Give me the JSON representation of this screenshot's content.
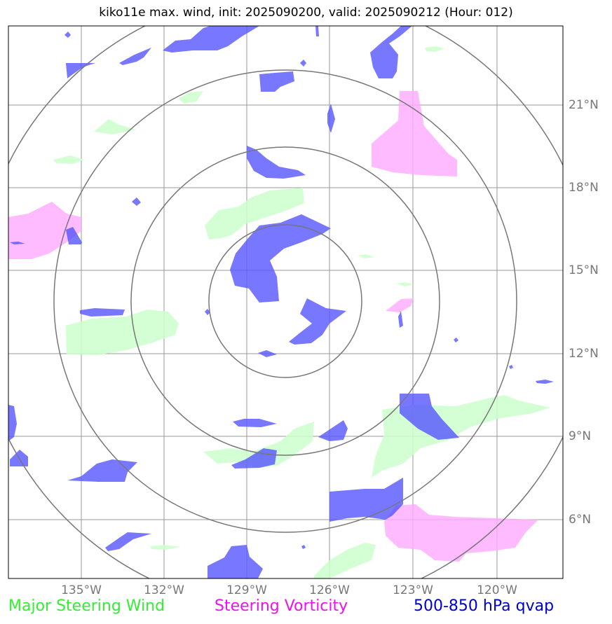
{
  "title": "kiko11e max. wind, init: 2025090200, valid: 2025090212 (Hour: 012)",
  "colors": {
    "wind": "#ccffcc",
    "vorticity": "#ffaaff",
    "qvap": "#5555ff",
    "grid": "#999999",
    "rings": "#777777"
  },
  "axes": {
    "lon_labels": [
      "135°W",
      "132°W",
      "129°W",
      "126°W",
      "123°W",
      "120°W"
    ],
    "lat_labels": [
      "21°N",
      "18°N",
      "15°N",
      "12°N",
      "9°N",
      "6°N"
    ]
  },
  "legend": {
    "wind": "Major Steering Wind",
    "vorticity": "Steering Vorticity",
    "qvap": "500-850 hPa qvap"
  }
}
